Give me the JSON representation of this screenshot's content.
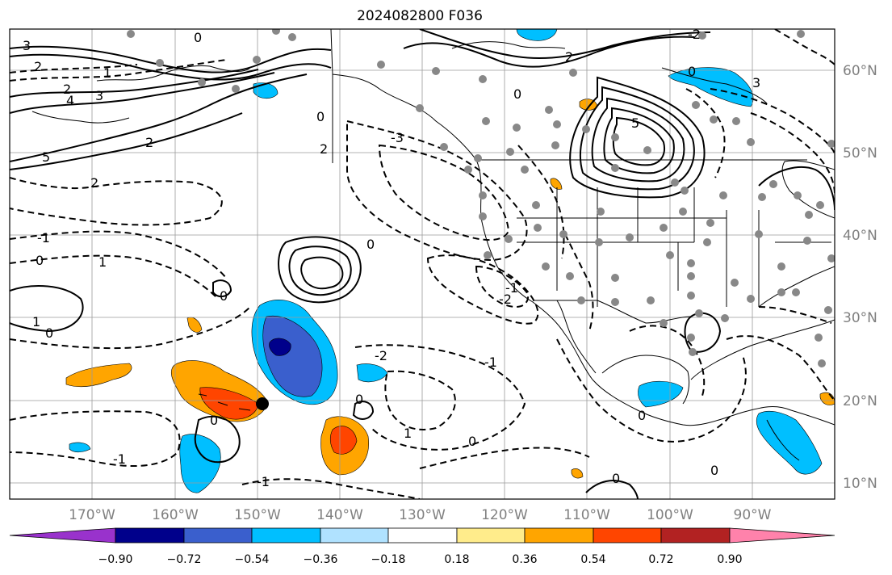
{
  "title": "2024082800 F036",
  "lat_labels": [
    "60°N",
    "50°N",
    "40°N",
    "30°N",
    "20°N",
    "10°N"
  ],
  "lon_labels": [
    "170°W",
    "160°W",
    "150°W",
    "140°W",
    "130°W",
    "120°W",
    "110°W",
    "100°W",
    "90°W"
  ],
  "colorbar": {
    "ticks": [
      "−0.90",
      "−0.72",
      "−0.54",
      "−0.36",
      "−0.18",
      "0.18",
      "0.36",
      "0.54",
      "0.72",
      "0.90"
    ],
    "colors": [
      "#9932cc",
      "#00008b",
      "#3a5fcd",
      "#00bfff",
      "#b0e2ff",
      "#ffffff",
      "#ffec8b",
      "#ffa500",
      "#ff4500",
      "#b22222",
      "#ff82ab"
    ]
  },
  "contour_labels": [
    "3",
    "2",
    "0",
    "1",
    "4",
    "3",
    "2",
    "5",
    "2",
    "2",
    "-1",
    "0",
    "1",
    "0",
    "1",
    "0",
    "-3",
    "2",
    "0",
    "3",
    "0",
    "5",
    "2",
    "-2",
    "0",
    "-1",
    "-2",
    "0",
    "-1",
    "0",
    "1",
    "0",
    "0",
    "-1",
    "-1",
    "0",
    "0",
    "-2",
    "0"
  ]
}
